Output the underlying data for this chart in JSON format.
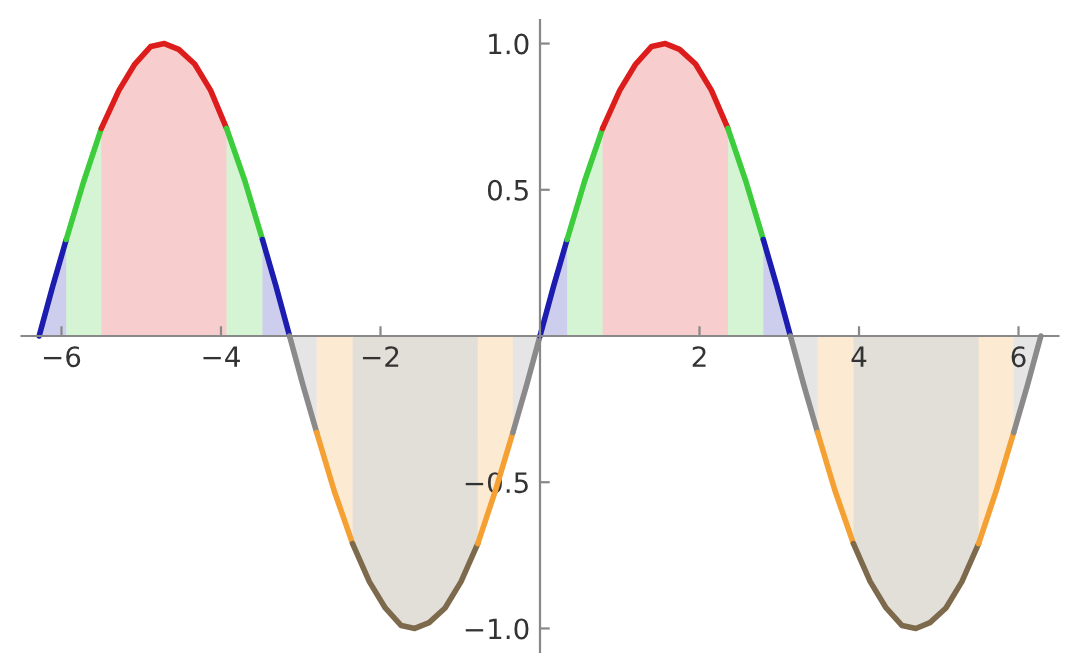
{
  "chart_data": {
    "type": "area",
    "xlim": [
      -6.5,
      6.5
    ],
    "ylim": [
      -1.08,
      1.08
    ],
    "xticks": [
      {
        "value": -6,
        "label": "−6"
      },
      {
        "value": -4,
        "label": "−4"
      },
      {
        "value": -2,
        "label": "−2"
      },
      {
        "value": 2,
        "label": "2"
      },
      {
        "value": 4,
        "label": "4"
      },
      {
        "value": 6,
        "label": "6"
      }
    ],
    "yticks": [
      {
        "value": -1,
        "label": "−1.0"
      },
      {
        "value": -0.5,
        "label": "−0.5"
      },
      {
        "value": 0.5,
        "label": "0.5"
      },
      {
        "value": 1,
        "label": "1.0"
      }
    ],
    "grid": false,
    "legend": false,
    "series": [
      {
        "color": "#1c1cb0",
        "x": [
          -6.28,
          -6.11,
          -5.94
        ],
        "values": [
          0,
          0.17,
          0.33
        ]
      },
      {
        "color": "#3ccc3c",
        "x": [
          -5.94,
          -5.72,
          -5.5
        ],
        "values": [
          0.33,
          0.53,
          0.71
        ]
      },
      {
        "color": "#dd1c1c",
        "x": [
          -5.5,
          -5.28,
          -5.08,
          -4.88,
          -4.71,
          -4.53,
          -4.33,
          -4.13,
          -3.93
        ],
        "values": [
          0.71,
          0.84,
          0.93,
          0.99,
          1.0,
          0.98,
          0.93,
          0.84,
          0.71
        ]
      },
      {
        "color": "#3ccc3c",
        "x": [
          -3.93,
          -3.7,
          -3.48
        ],
        "values": [
          0.71,
          0.53,
          0.33
        ]
      },
      {
        "color": "#1c1cb0",
        "x": [
          -3.48,
          -3.31,
          -3.14
        ],
        "values": [
          0.33,
          0.17,
          0
        ]
      },
      {
        "color": "#8a8a8a",
        "x": [
          -3.14,
          -2.97,
          -2.8
        ],
        "values": [
          0,
          -0.17,
          -0.33
        ]
      },
      {
        "color": "#f5a032",
        "x": [
          -2.8,
          -2.58,
          -2.35
        ],
        "values": [
          -0.33,
          -0.53,
          -0.71
        ]
      },
      {
        "color": "#7d6a4c",
        "x": [
          -2.35,
          -2.14,
          -1.94,
          -1.74,
          -1.57,
          -1.39,
          -1.19,
          -0.99,
          -0.78
        ],
        "values": [
          -0.71,
          -0.84,
          -0.93,
          -0.99,
          -1.0,
          -0.98,
          -0.93,
          -0.84,
          -0.71
        ]
      },
      {
        "color": "#f5a032",
        "x": [
          -0.78,
          -0.56,
          -0.34
        ],
        "values": [
          -0.71,
          -0.53,
          -0.33
        ]
      },
      {
        "color": "#8a8a8a",
        "x": [
          -0.34,
          -0.17,
          0
        ],
        "values": [
          -0.33,
          -0.17,
          0
        ]
      },
      {
        "color": "#1c1cb0",
        "x": [
          0,
          0.17,
          0.34
        ],
        "values": [
          0,
          0.17,
          0.33
        ]
      },
      {
        "color": "#3ccc3c",
        "x": [
          0.34,
          0.56,
          0.785
        ],
        "values": [
          0.33,
          0.53,
          0.71
        ]
      },
      {
        "color": "#dd1c1c",
        "x": [
          0.785,
          1.0,
          1.2,
          1.4,
          1.571,
          1.75,
          1.95,
          2.15,
          2.356
        ],
        "values": [
          0.71,
          0.84,
          0.93,
          0.99,
          1.0,
          0.98,
          0.93,
          0.84,
          0.71
        ]
      },
      {
        "color": "#3ccc3c",
        "x": [
          2.356,
          2.58,
          2.8
        ],
        "values": [
          0.71,
          0.53,
          0.33
        ]
      },
      {
        "color": "#1c1cb0",
        "x": [
          2.8,
          2.97,
          3.14
        ],
        "values": [
          0.33,
          0.17,
          0
        ]
      },
      {
        "color": "#8a8a8a",
        "x": [
          3.14,
          3.31,
          3.48
        ],
        "values": [
          0,
          -0.17,
          -0.33
        ]
      },
      {
        "color": "#f5a032",
        "x": [
          3.48,
          3.7,
          3.93
        ],
        "values": [
          -0.33,
          -0.53,
          -0.71
        ]
      },
      {
        "color": "#7d6a4c",
        "x": [
          3.93,
          4.14,
          4.34,
          4.54,
          4.712,
          4.89,
          5.09,
          5.29,
          5.5
        ],
        "values": [
          -0.71,
          -0.84,
          -0.93,
          -0.99,
          -1.0,
          -0.98,
          -0.93,
          -0.84,
          -0.71
        ]
      },
      {
        "color": "#f5a032",
        "x": [
          5.5,
          5.72,
          5.94
        ],
        "values": [
          -0.71,
          -0.53,
          -0.33
        ]
      },
      {
        "color": "#8a8a8a",
        "x": [
          5.94,
          6.11,
          6.28
        ],
        "values": [
          -0.33,
          -0.17,
          0
        ]
      }
    ]
  }
}
